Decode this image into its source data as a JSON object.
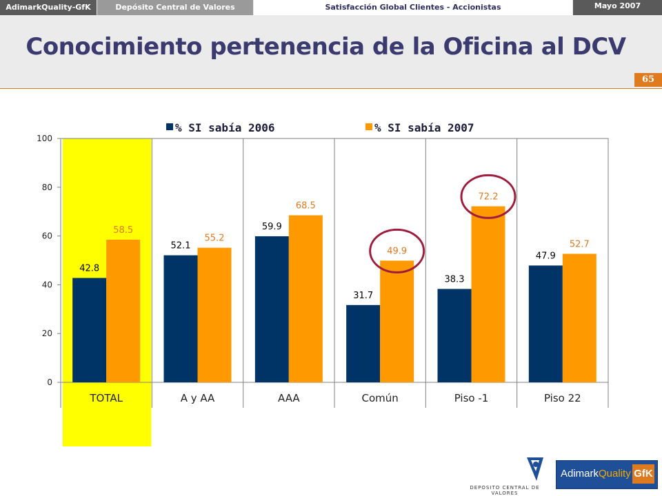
{
  "header": {
    "brand": "AdimarkQuality-GfK",
    "client": "Depósito Central de Valores",
    "study": "Satisfacción Global Clientes - Accionistas",
    "date": "Mayo 2007",
    "title": "Conocimiento pertenencia de la Oficina al DCV",
    "page_number": "65"
  },
  "colors": {
    "series_2006": "#003366",
    "series_2007": "#ff9900",
    "highlight": "#ffff00",
    "circle": "#a01c3c",
    "label_2006": "#000000",
    "label_2007": "#e07a1f"
  },
  "chart_data": {
    "type": "bar",
    "categories": [
      "TOTAL",
      "A y AA",
      "AAA",
      "Común",
      "Piso -1",
      "Piso 22"
    ],
    "series": [
      {
        "name": "% SI sabía 2006",
        "values": [
          42.8,
          52.1,
          59.9,
          31.7,
          38.3,
          47.9
        ]
      },
      {
        "name": "% SI sabía 2007",
        "values": [
          58.5,
          55.2,
          68.5,
          49.9,
          72.2,
          52.7
        ]
      }
    ],
    "ylim": [
      0,
      100
    ],
    "yticks": [
      0,
      20,
      40,
      60,
      80,
      100
    ],
    "legend_position": "top",
    "grid": false,
    "highlighted_category": "TOTAL",
    "circled": [
      {
        "category": "Común",
        "series": "% SI sabía 2007"
      },
      {
        "category": "Piso -1",
        "series": "% SI sabía 2007"
      }
    ]
  },
  "footer": {
    "dcv_logo_caption": "DEPOSITO CENTRAL DE VALORES",
    "gfk_logo_text_a": "Adimark",
    "gfk_logo_text_b": "Quality",
    "gfk_logo_box": "GfK"
  }
}
